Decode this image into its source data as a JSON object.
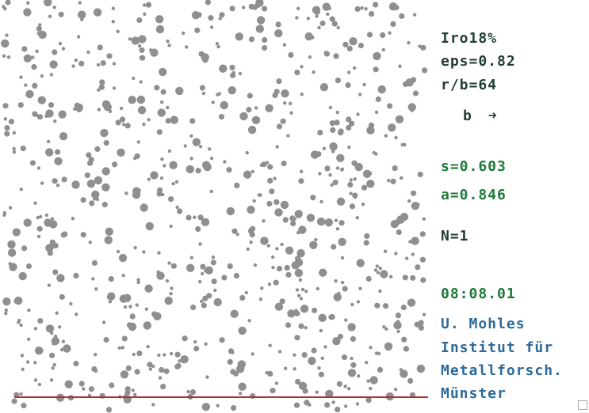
{
  "params": {
    "label_iro": "Iro18%",
    "label_eps": "eps=0.82",
    "label_rb": "r/b=64",
    "b_label": "b",
    "arrow": "➜"
  },
  "stats": {
    "s": "s=0.603",
    "a": "a=0.846",
    "n": "N=1"
  },
  "time": "08:08.01",
  "credits": {
    "line1": "U. Mohles",
    "line2": "Institut für",
    "line3": "Metallforsch.",
    "line4": "Münster"
  },
  "colors": {
    "particle": "#8f8f8f",
    "dislocation": "#b03030",
    "label_dark": "#1f3d34",
    "label_green": "#1e7a3a",
    "label_blue": "#2d6a9a"
  },
  "icons": {
    "corner": "resize-grip-icon"
  }
}
